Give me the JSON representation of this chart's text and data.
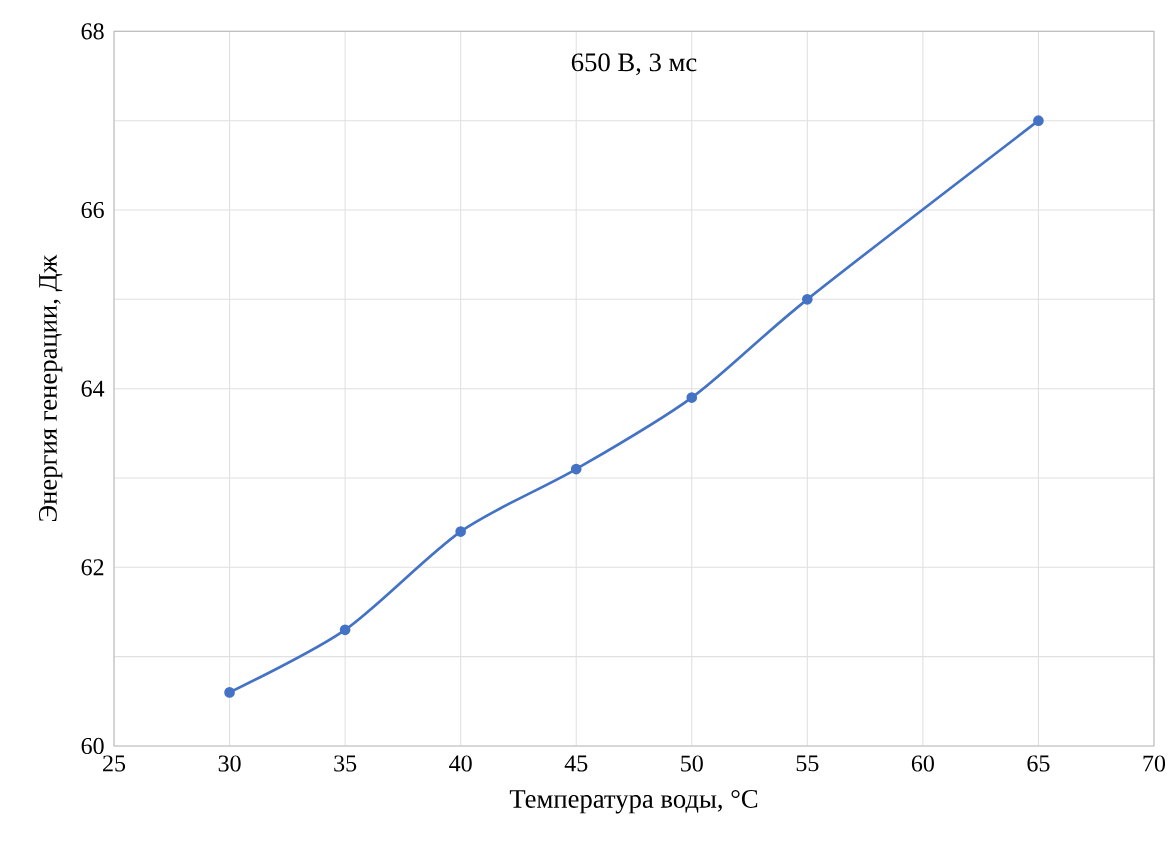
{
  "chart_data": {
    "type": "line",
    "title": "650 В, 3 мс",
    "xlabel": "Температура воды, °C",
    "ylabel": "Энергия генерации, Дж",
    "x": [
      30,
      35,
      40,
      45,
      50,
      55,
      65
    ],
    "series": [
      {
        "color": "#4472c4",
        "values": [
          60.6,
          61.3,
          62.4,
          63.1,
          63.9,
          65.0,
          67.0
        ]
      }
    ],
    "xlim": [
      25,
      70
    ],
    "xticks": [
      25,
      30,
      35,
      40,
      45,
      50,
      55,
      60,
      65,
      70
    ],
    "ylim": [
      60,
      68
    ],
    "yticks": [
      60,
      {
        "value": 61,
        "label": null
      },
      62,
      {
        "value": 63,
        "label": null
      },
      64,
      {
        "value": 65,
        "label": null
      },
      66,
      {
        "value": 67,
        "label": null
      },
      68
    ],
    "grid": true,
    "marker": "circle",
    "line_style": "solid"
  }
}
